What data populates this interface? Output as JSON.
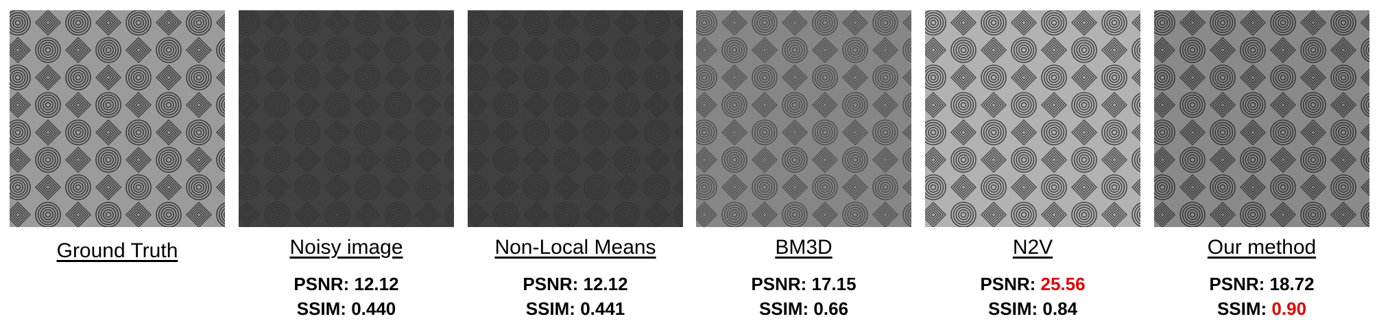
{
  "panels": [
    {
      "label": "Ground Truth",
      "tone": "#9c9c9c",
      "noise": 0.05,
      "patternOpacity": 0.85,
      "psnr": "",
      "ssim": ""
    },
    {
      "label": "Noisy image",
      "tone": "#4a4a4a",
      "noise": 0.95,
      "patternOpacity": 0.35,
      "psnr": "12.12",
      "ssim": "0.440"
    },
    {
      "label": "Non-Local Means",
      "tone": "#484848",
      "noise": 0.9,
      "patternOpacity": 0.38,
      "psnr": "12.12",
      "ssim": "0.441"
    },
    {
      "label": "BM3D",
      "tone": "#8a8a8a",
      "noise": 0.2,
      "patternOpacity": 0.6,
      "psnr": "17.15",
      "ssim": "0.66"
    },
    {
      "label": "N2V",
      "tone": "#b4b4b4",
      "noise": 0.08,
      "patternOpacity": 0.8,
      "psnr": "25.56",
      "ssim": "0.84"
    },
    {
      "label": "Our method",
      "tone": "#8c8c8c",
      "noise": 0.12,
      "patternOpacity": 0.85,
      "psnr": "18.72",
      "ssim": "0.90"
    }
  ],
  "metric_labels": {
    "psnr": "PSNR:",
    "ssim": "SSIM:"
  },
  "best_color": "#e00000"
}
